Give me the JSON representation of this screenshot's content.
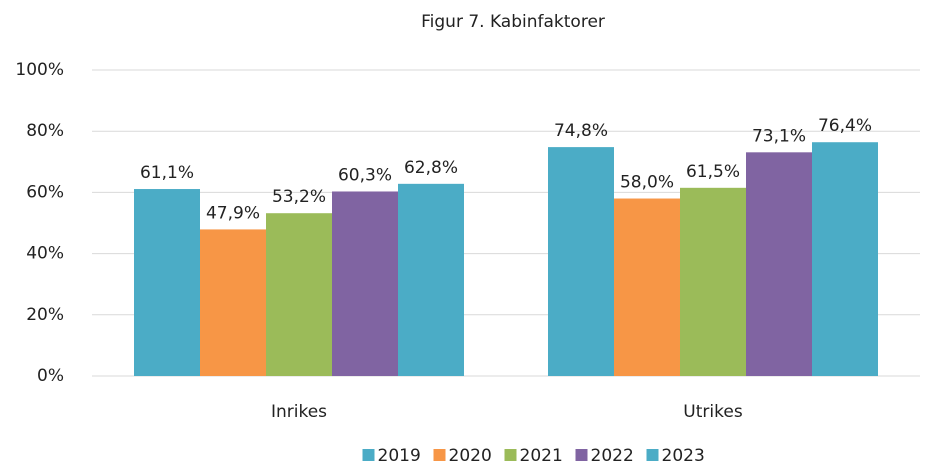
{
  "chart_data": {
    "type": "bar",
    "title": "Figur 7. Kabinfaktorer",
    "categories": [
      "Inrikes",
      "Utrikes"
    ],
    "series": [
      {
        "name": "2019",
        "color": "#4bacc6",
        "values": [
          61.1,
          74.8
        ],
        "value_labels": [
          "61,1%",
          "74,8%"
        ]
      },
      {
        "name": "2020",
        "color": "#f79646",
        "values": [
          47.9,
          58.0
        ],
        "value_labels": [
          "47,9%",
          "58,0%"
        ]
      },
      {
        "name": "2021",
        "color": "#9bbb59",
        "values": [
          53.2,
          61.5
        ],
        "value_labels": [
          "53,2%",
          "61,5%"
        ]
      },
      {
        "name": "2022",
        "color": "#8064a2",
        "values": [
          60.3,
          73.1
        ],
        "value_labels": [
          "60,3%",
          "73,1%"
        ]
      },
      {
        "name": "2023",
        "color": "#4bacc6",
        "values": [
          62.8,
          76.4
        ],
        "value_labels": [
          "62,8%",
          "76,4%"
        ]
      }
    ],
    "ylim": [
      0,
      100
    ],
    "yticks": [
      {
        "value": 0,
        "label": "0%"
      },
      {
        "value": 20,
        "label": "20%"
      },
      {
        "value": 40,
        "label": "40%"
      },
      {
        "value": 60,
        "label": "60%"
      },
      {
        "value": 80,
        "label": "80%"
      },
      {
        "value": 100,
        "label": "100%"
      }
    ],
    "grid": true,
    "legend": "bottom"
  }
}
